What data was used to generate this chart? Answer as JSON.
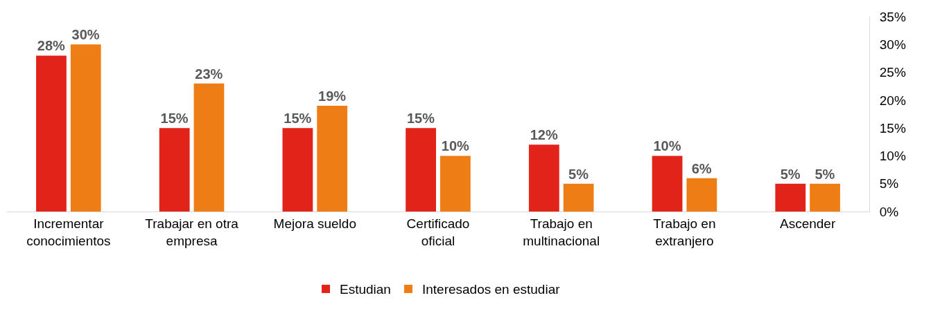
{
  "chart_data": {
    "type": "bar",
    "categories": [
      "Incrementar conocimientos",
      "Trabajar en otra empresa",
      "Mejora sueldo",
      "Certificado oficial",
      "Trabajo en multinacional",
      "Trabajo en extranjero",
      "Ascender"
    ],
    "series": [
      {
        "name": "Estudian",
        "color": "#e2231a",
        "values": [
          28,
          15,
          15,
          15,
          12,
          10,
          5
        ],
        "value_labels": [
          "28%",
          "15%",
          "15%",
          "15%",
          "12%",
          "10%",
          "5%"
        ]
      },
      {
        "name": "Interesados en estudiar",
        "color": "#ef7d15",
        "values": [
          30,
          23,
          19,
          10,
          5,
          6,
          5
        ],
        "value_labels": [
          "30%",
          "23%",
          "19%",
          "10%",
          "5%",
          "6%",
          "5%"
        ]
      }
    ],
    "ylim": [
      0,
      35
    ],
    "yticks": [
      {
        "value": 0,
        "label": "0%"
      },
      {
        "value": 5,
        "label": "5%"
      },
      {
        "value": 10,
        "label": "10%"
      },
      {
        "value": 15,
        "label": "15%"
      },
      {
        "value": 20,
        "label": "20%"
      },
      {
        "value": 25,
        "label": "25%"
      },
      {
        "value": 30,
        "label": "30%"
      },
      {
        "value": 35,
        "label": "35%"
      }
    ],
    "grid": false,
    "legend": "bottom"
  }
}
